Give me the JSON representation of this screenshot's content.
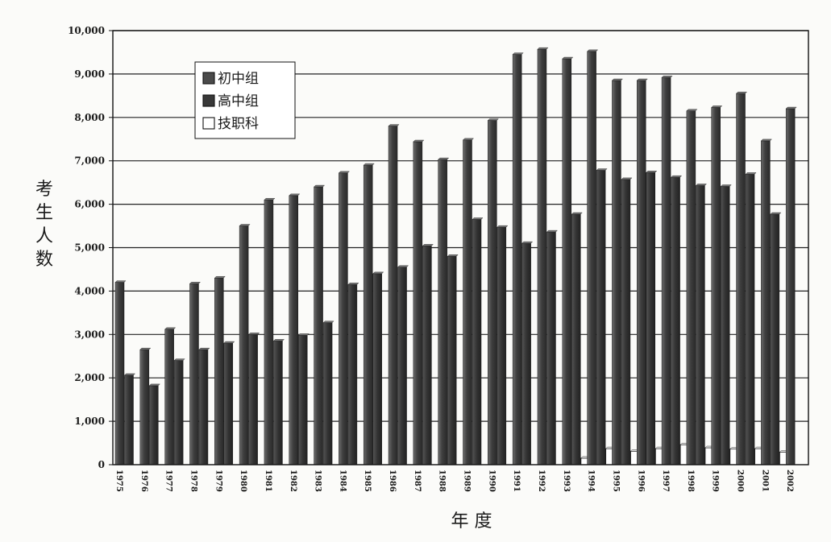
{
  "chart_data": {
    "type": "bar",
    "title": "",
    "xlabel": "年 度",
    "ylabel": "考生人数",
    "ylim": [
      0,
      10000
    ],
    "yticks": [
      0,
      1000,
      2000,
      3000,
      4000,
      5000,
      6000,
      7000,
      8000,
      9000,
      10000
    ],
    "ytick_labels": [
      "0",
      "1,000",
      "2,000",
      "3,000",
      "4,000",
      "5,000",
      "6,000",
      "7,000",
      "8,000",
      "9,000",
      "10,000"
    ],
    "grid": true,
    "legend_position": "top-left",
    "categories": [
      "1975",
      "1976",
      "1977",
      "1978",
      "1979",
      "1980",
      "1981",
      "1982",
      "1983",
      "1984",
      "1985",
      "1986",
      "1987",
      "1988",
      "1989",
      "1990",
      "1991",
      "1992",
      "1993",
      "1994",
      "1995",
      "1996",
      "1997",
      "1998",
      "1999",
      "2000",
      "2001",
      "2002"
    ],
    "series": [
      {
        "name": "初中组",
        "color": "#4a4a4a",
        "values": [
          4200,
          2650,
          3120,
          4170,
          4300,
          5500,
          6100,
          6200,
          6400,
          6720,
          6900,
          7800,
          7440,
          7030,
          7480,
          7930,
          9450,
          9570,
          9350,
          9520,
          8850,
          8850,
          8920,
          8150,
          8230,
          8550,
          7460,
          8200
        ]
      },
      {
        "name": "高中组",
        "color": "#383838",
        "values": [
          2060,
          1820,
          2400,
          2650,
          2800,
          3000,
          2850,
          2980,
          3270,
          4150,
          4400,
          4550,
          5040,
          4800,
          5650,
          5470,
          5100,
          5360,
          5770,
          6780,
          6570,
          6730,
          6620,
          6430,
          6410,
          6690,
          5770,
          null
        ]
      },
      {
        "name": "技职科",
        "color": "#ffffff",
        "values": [
          null,
          null,
          null,
          null,
          null,
          null,
          null,
          null,
          null,
          null,
          null,
          null,
          null,
          null,
          null,
          null,
          null,
          null,
          150,
          370,
          310,
          370,
          460,
          390,
          360,
          370,
          290,
          null
        ]
      }
    ]
  }
}
